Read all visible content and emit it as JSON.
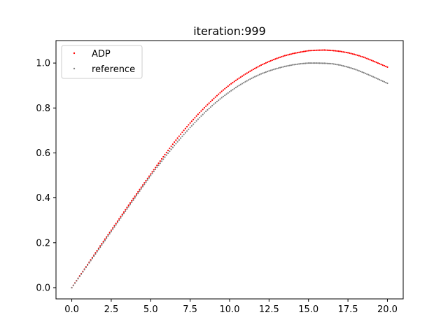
{
  "chart_data": {
    "type": "scatter",
    "title": "iteration:999",
    "xlabel": "",
    "ylabel": "",
    "xlim": [
      -1.0,
      21.0
    ],
    "ylim": [
      -0.05,
      1.1
    ],
    "grid": false,
    "legend_position": "top-left",
    "x_ticks": [
      {
        "value": 0.0,
        "label": "0.0"
      },
      {
        "value": 2.5,
        "label": "2.5"
      },
      {
        "value": 5.0,
        "label": "5.0"
      },
      {
        "value": 7.5,
        "label": "7.5"
      },
      {
        "value": 10.0,
        "label": "10.0"
      },
      {
        "value": 12.5,
        "label": "12.5"
      },
      {
        "value": 15.0,
        "label": "15.0"
      },
      {
        "value": 17.5,
        "label": "17.5"
      },
      {
        "value": 20.0,
        "label": "20.0"
      }
    ],
    "y_ticks": [
      {
        "value": 0.0,
        "label": "0.0"
      },
      {
        "value": 0.2,
        "label": "0.2"
      },
      {
        "value": 0.4,
        "label": "0.4"
      },
      {
        "value": 0.6,
        "label": "0.6"
      },
      {
        "value": 0.8,
        "label": "0.8"
      },
      {
        "value": 1.0,
        "label": "1.0"
      }
    ],
    "series": [
      {
        "name": "ADP",
        "color": "#ff0000",
        "x": [
          0,
          0.5,
          1,
          1.5,
          2,
          2.5,
          3,
          3.5,
          4,
          4.5,
          5,
          5.5,
          6,
          6.5,
          7,
          7.5,
          8,
          8.5,
          9,
          9.5,
          10,
          10.5,
          11,
          11.5,
          12,
          12.5,
          13,
          13.5,
          14,
          14.5,
          15,
          15.5,
          16,
          16.5,
          17,
          17.5,
          18,
          18.5,
          19,
          19.5,
          20
        ],
        "y": [
          0.0,
          0.052,
          0.103,
          0.155,
          0.206,
          0.256,
          0.306,
          0.357,
          0.407,
          0.457,
          0.506,
          0.554,
          0.602,
          0.648,
          0.692,
          0.733,
          0.772,
          0.808,
          0.842,
          0.874,
          0.903,
          0.928,
          0.951,
          0.972,
          0.991,
          1.007,
          1.021,
          1.033,
          1.042,
          1.049,
          1.055,
          1.057,
          1.058,
          1.056,
          1.052,
          1.046,
          1.037,
          1.026,
          1.012,
          0.997,
          0.982
        ]
      },
      {
        "name": "reference",
        "color": "#808080",
        "x": [
          0,
          0.5,
          1,
          1.5,
          2,
          2.5,
          3,
          3.5,
          4,
          4.5,
          5,
          5.5,
          6,
          6.5,
          7,
          7.5,
          8,
          8.5,
          9,
          9.5,
          10,
          10.5,
          11,
          11.5,
          12,
          12.5,
          13,
          13.5,
          14,
          14.5,
          15,
          15.5,
          16,
          16.5,
          17,
          17.5,
          18,
          18.5,
          19,
          19.5,
          20
        ],
        "y": [
          0.0,
          0.05,
          0.1,
          0.15,
          0.2,
          0.25,
          0.3,
          0.35,
          0.4,
          0.45,
          0.499,
          0.545,
          0.59,
          0.633,
          0.674,
          0.713,
          0.75,
          0.785,
          0.817,
          0.846,
          0.872,
          0.896,
          0.917,
          0.936,
          0.952,
          0.965,
          0.976,
          0.985,
          0.992,
          0.997,
          1.0,
          1.0,
          0.999,
          0.997,
          0.991,
          0.982,
          0.971,
          0.957,
          0.942,
          0.926,
          0.91
        ]
      }
    ]
  }
}
